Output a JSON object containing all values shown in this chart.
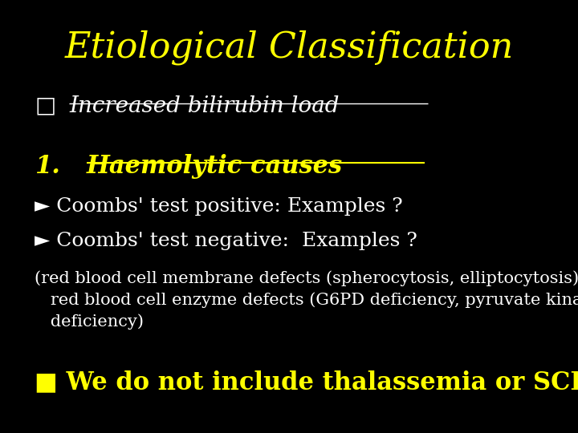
{
  "background_color": "#000000",
  "title": "Etiological Classification",
  "title_color": "#FFFF00",
  "title_fontsize": 32,
  "title_fontstyle": "italic",
  "bullet1_symbol": "□",
  "bullet1_text": "Increased bilirubin load",
  "bullet1_color": "#FFFFFF",
  "bullet1_fontsize": 20,
  "numbered_label": "1.",
  "numbered_text": "Haemolytic causes",
  "numbered_color": "#FFFF00",
  "numbered_fontsize": 22,
  "line1_symbol": "►",
  "line1_text": "Coombs' test positive: Examples ?",
  "line1_color": "#FFFFFF",
  "line1_fontsize": 18,
  "line2_symbol": "►",
  "line2_text": "Coombs' test negative:  Examples ?",
  "line2_color": "#FFFFFF",
  "line2_fontsize": 18,
  "para_text": "(red blood cell membrane defects (spherocytosis, elliptocytosis),\n   red blood cell enzyme defects (G6PD deficiency, pyruvate kinase\n   deficiency)",
  "para_color": "#FFFFFF",
  "para_fontsize": 15,
  "last_symbol": "■",
  "last_text": " We do not include thalassemia or SCD.  why?",
  "last_color": "#FFFF00",
  "last_fontsize": 22
}
